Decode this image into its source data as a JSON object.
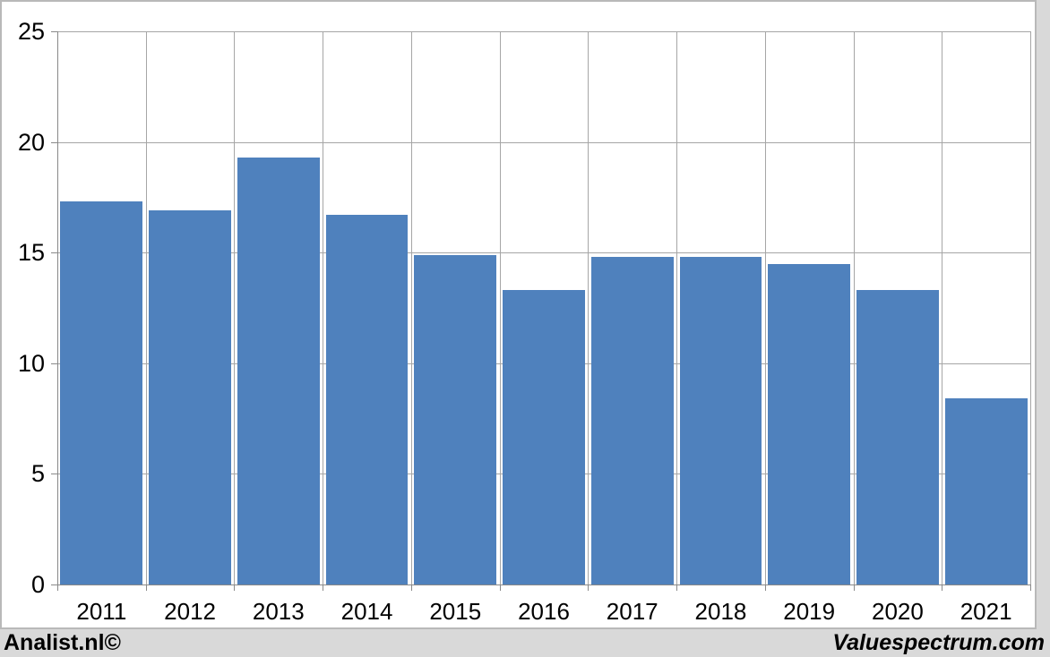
{
  "chart_data": {
    "type": "bar",
    "title": "",
    "xlabel": "",
    "ylabel": "",
    "categories": [
      "2011",
      "2012",
      "2013",
      "2014",
      "2015",
      "2016",
      "2017",
      "2018",
      "2019",
      "2020",
      "2021"
    ],
    "values": [
      17.3,
      16.9,
      19.3,
      16.7,
      14.9,
      13.3,
      14.8,
      14.8,
      14.5,
      13.3,
      8.4
    ],
    "ylim": [
      0,
      25
    ],
    "yticks": [
      0,
      5,
      10,
      15,
      20,
      25
    ],
    "ytick_labels": [
      "0",
      "5",
      "10",
      "15",
      "20",
      "25"
    ],
    "grid": true,
    "legend": "none",
    "bar_color": "#4f81bd"
  },
  "colors": {
    "page_bg": "#d9d9d9",
    "panel_bg": "#ffffff",
    "panel_border": "#b9b9b9",
    "gridline": "#a6a6a6",
    "axis": "#898989",
    "bar": "#4f81bd",
    "text": "#000000"
  },
  "footer": {
    "left_brand": "Analist.nl©",
    "right_brand": "Valuespectrum.com"
  }
}
